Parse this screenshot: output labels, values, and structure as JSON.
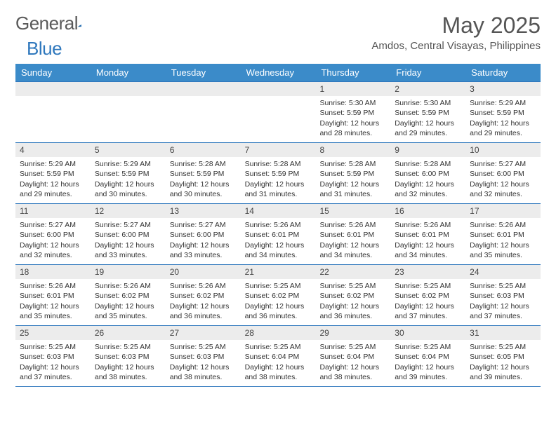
{
  "brand": {
    "name1": "General",
    "name2": "Blue"
  },
  "title": "May 2025",
  "location": "Amdos, Central Visayas, Philippines",
  "colors": {
    "header_bar": "#3b8bc9",
    "daynum_bg": "#ececec",
    "week_border": "#2f78bd",
    "text": "#333333",
    "title_text": "#555555",
    "logo_gray": "#5a5a5a",
    "logo_blue": "#2f78bd",
    "bg": "#ffffff"
  },
  "days_of_week": [
    "Sunday",
    "Monday",
    "Tuesday",
    "Wednesday",
    "Thursday",
    "Friday",
    "Saturday"
  ],
  "weeks": [
    [
      null,
      null,
      null,
      null,
      {
        "n": "1",
        "sr": "5:30 AM",
        "ss": "5:59 PM",
        "dl": "12 hours and 28 minutes."
      },
      {
        "n": "2",
        "sr": "5:30 AM",
        "ss": "5:59 PM",
        "dl": "12 hours and 29 minutes."
      },
      {
        "n": "3",
        "sr": "5:29 AM",
        "ss": "5:59 PM",
        "dl": "12 hours and 29 minutes."
      }
    ],
    [
      {
        "n": "4",
        "sr": "5:29 AM",
        "ss": "5:59 PM",
        "dl": "12 hours and 29 minutes."
      },
      {
        "n": "5",
        "sr": "5:29 AM",
        "ss": "5:59 PM",
        "dl": "12 hours and 30 minutes."
      },
      {
        "n": "6",
        "sr": "5:28 AM",
        "ss": "5:59 PM",
        "dl": "12 hours and 30 minutes."
      },
      {
        "n": "7",
        "sr": "5:28 AM",
        "ss": "5:59 PM",
        "dl": "12 hours and 31 minutes."
      },
      {
        "n": "8",
        "sr": "5:28 AM",
        "ss": "5:59 PM",
        "dl": "12 hours and 31 minutes."
      },
      {
        "n": "9",
        "sr": "5:28 AM",
        "ss": "6:00 PM",
        "dl": "12 hours and 32 minutes."
      },
      {
        "n": "10",
        "sr": "5:27 AM",
        "ss": "6:00 PM",
        "dl": "12 hours and 32 minutes."
      }
    ],
    [
      {
        "n": "11",
        "sr": "5:27 AM",
        "ss": "6:00 PM",
        "dl": "12 hours and 32 minutes."
      },
      {
        "n": "12",
        "sr": "5:27 AM",
        "ss": "6:00 PM",
        "dl": "12 hours and 33 minutes."
      },
      {
        "n": "13",
        "sr": "5:27 AM",
        "ss": "6:00 PM",
        "dl": "12 hours and 33 minutes."
      },
      {
        "n": "14",
        "sr": "5:26 AM",
        "ss": "6:01 PM",
        "dl": "12 hours and 34 minutes."
      },
      {
        "n": "15",
        "sr": "5:26 AM",
        "ss": "6:01 PM",
        "dl": "12 hours and 34 minutes."
      },
      {
        "n": "16",
        "sr": "5:26 AM",
        "ss": "6:01 PM",
        "dl": "12 hours and 34 minutes."
      },
      {
        "n": "17",
        "sr": "5:26 AM",
        "ss": "6:01 PM",
        "dl": "12 hours and 35 minutes."
      }
    ],
    [
      {
        "n": "18",
        "sr": "5:26 AM",
        "ss": "6:01 PM",
        "dl": "12 hours and 35 minutes."
      },
      {
        "n": "19",
        "sr": "5:26 AM",
        "ss": "6:02 PM",
        "dl": "12 hours and 35 minutes."
      },
      {
        "n": "20",
        "sr": "5:26 AM",
        "ss": "6:02 PM",
        "dl": "12 hours and 36 minutes."
      },
      {
        "n": "21",
        "sr": "5:25 AM",
        "ss": "6:02 PM",
        "dl": "12 hours and 36 minutes."
      },
      {
        "n": "22",
        "sr": "5:25 AM",
        "ss": "6:02 PM",
        "dl": "12 hours and 36 minutes."
      },
      {
        "n": "23",
        "sr": "5:25 AM",
        "ss": "6:02 PM",
        "dl": "12 hours and 37 minutes."
      },
      {
        "n": "24",
        "sr": "5:25 AM",
        "ss": "6:03 PM",
        "dl": "12 hours and 37 minutes."
      }
    ],
    [
      {
        "n": "25",
        "sr": "5:25 AM",
        "ss": "6:03 PM",
        "dl": "12 hours and 37 minutes."
      },
      {
        "n": "26",
        "sr": "5:25 AM",
        "ss": "6:03 PM",
        "dl": "12 hours and 38 minutes."
      },
      {
        "n": "27",
        "sr": "5:25 AM",
        "ss": "6:03 PM",
        "dl": "12 hours and 38 minutes."
      },
      {
        "n": "28",
        "sr": "5:25 AM",
        "ss": "6:04 PM",
        "dl": "12 hours and 38 minutes."
      },
      {
        "n": "29",
        "sr": "5:25 AM",
        "ss": "6:04 PM",
        "dl": "12 hours and 38 minutes."
      },
      {
        "n": "30",
        "sr": "5:25 AM",
        "ss": "6:04 PM",
        "dl": "12 hours and 39 minutes."
      },
      {
        "n": "31",
        "sr": "5:25 AM",
        "ss": "6:05 PM",
        "dl": "12 hours and 39 minutes."
      }
    ]
  ],
  "labels": {
    "sunrise": "Sunrise: ",
    "sunset": "Sunset: ",
    "daylight": "Daylight: "
  }
}
